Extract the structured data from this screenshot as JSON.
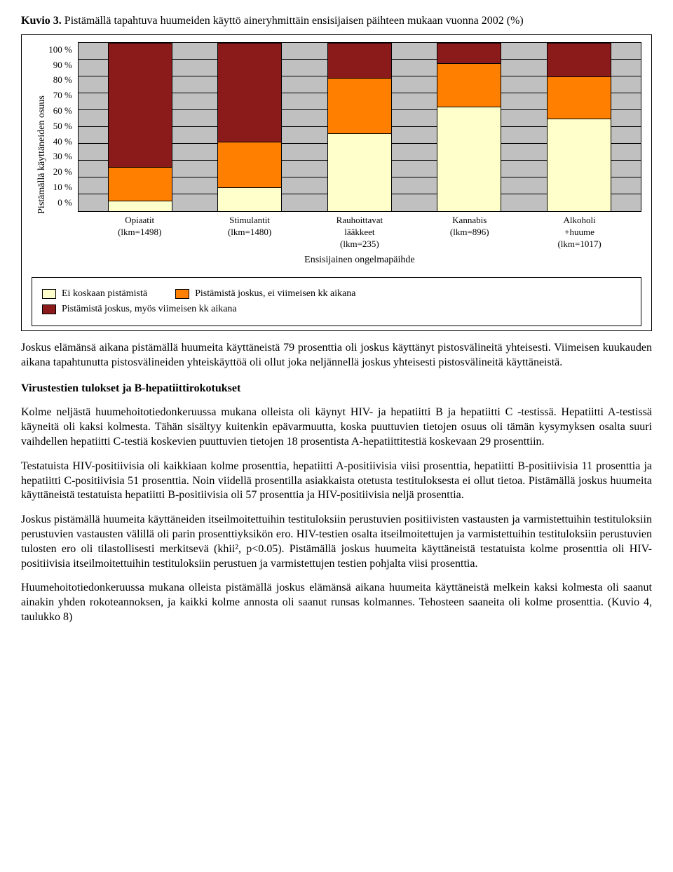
{
  "chart": {
    "type": "stacked-bar",
    "title_prefix": "Kuvio 3. ",
    "title_rest": "Pistämällä tapahtuva huumeiden käyttö aineryhmittäin ensisijaisen päihteen mukaan vuonna 2002 (%)",
    "y_axis_label": "Pistämällä käyttäneiden osuus",
    "y_ticks": [
      "0 %",
      "10 %",
      "20 %",
      "30 %",
      "40 %",
      "50 %",
      "60 %",
      "70 %",
      "80 %",
      "90 %",
      "100 %"
    ],
    "ylim": [
      0,
      100
    ],
    "grid_step": 10,
    "grid_color": "#000000",
    "plot_bg": "#c0c0c0",
    "bar_border": "#000000",
    "x_axis_title": "Ensisijainen ongelmapäihde",
    "categories": [
      {
        "line1": "Opiaatit",
        "line2": "(lkm=1498)"
      },
      {
        "line1": "Stimulantit",
        "line2": "(lkm=1480)"
      },
      {
        "line1": "Rauhoittavat",
        "line2": "lääkkeet",
        "line3": "(lkm=235)"
      },
      {
        "line1": "Kannabis",
        "line2": "(lkm=896)"
      },
      {
        "line1": "Alkoholi",
        "line2": "+huume",
        "line3": "(lkm=1017)"
      }
    ],
    "series_colors": {
      "ei_koskaan": "#ffffcc",
      "joskus_ei_viim": "#ff7f00",
      "joskus_myos_viim": "#8b1a1a"
    },
    "values": [
      {
        "ei_koskaan": 6,
        "joskus_ei_viim": 20,
        "joskus_myos_viim": 74
      },
      {
        "ei_koskaan": 14,
        "joskus_ei_viim": 27,
        "joskus_myos_viim": 59
      },
      {
        "ei_koskaan": 46,
        "joskus_ei_viim": 33,
        "joskus_myos_viim": 21
      },
      {
        "ei_koskaan": 62,
        "joskus_ei_viim": 26,
        "joskus_myos_viim": 12
      },
      {
        "ei_koskaan": 55,
        "joskus_ei_viim": 25,
        "joskus_myos_viim": 20
      }
    ],
    "legend": {
      "ei_koskaan": "Ei koskaan pistämistä",
      "joskus_ei_viim": "Pistämistä joskus, ei viimeisen kk aikana",
      "joskus_myos_viim": "Pistämistä joskus, myös viimeisen kk aikana"
    }
  },
  "paragraphs": {
    "p1": "Joskus elämänsä aikana pistämällä huumeita käyttäneistä 79 prosenttia oli joskus käyttänyt pistosvälineitä yhteisesti. Viimeisen kuukauden aikana tapahtunutta pistosvälineiden yhteiskäyttöä oli ollut joka neljännellä joskus yhteisesti pistosvälineitä käyttäneistä.",
    "h1": "Virustestien tulokset ja B-hepatiittirokotukset",
    "p2": "Kolme neljästä huumehoitotiedonkeruussa mukana olleista oli käynyt HIV- ja hepatiitti B ja hepatiitti C -testissä. Hepatiitti A-testissä käyneitä oli kaksi kolmesta. Tähän sisältyy kuitenkin epävarmuutta, koska puuttuvien tietojen osuus oli tämän kysymyksen osalta suuri vaihdellen hepatiitti C-testiä koskevien puuttuvien tietojen 18 prosentista A-hepatiittitestiä koskevaan 29 prosenttiin.",
    "p3": "Testatuista HIV-positiivisia oli kaikkiaan kolme prosenttia, hepatiitti A-positiivisia viisi prosenttia, hepatiitti B-positiivisia 11 prosenttia ja hepatiitti C-positiivisia 51 prosenttia. Noin viidellä prosentilla asiakkaista otetusta testituloksesta ei ollut tietoa. Pistämällä joskus huumeita käyttäneistä testatuista hepatiitti B-positiivisia oli 57 prosenttia ja HIV-positiivisia neljä prosenttia.",
    "p4": "Joskus pistämällä huumeita käyttäneiden itseilmoitettuihin testituloksiin perustuvien positiivisten vastausten ja varmistettuihin testituloksiin perustuvien vastausten välillä oli parin prosenttiyksikön ero. HIV-testien osalta itseilmoitettujen ja varmistettuihin testituloksiin perustuvien tulosten ero oli tilastollisesti merkitsevä (khii², p<0.05). Pistämällä joskus huumeita käyttäneistä testatuista kolme prosenttia oli HIV-positiivisia itseilmoitettuihin testituloksiin perustuen ja varmistettujen testien pohjalta viisi prosenttia.",
    "p5": "Huumehoitotiedonkeruussa mukana olleista pistämällä joskus elämänsä aikana huumeita käyttäneistä melkein kaksi kolmesta oli saanut ainakin yhden rokoteannoksen, ja kaikki kolme annosta oli saanut runsas kolmannes. Tehosteen saaneita oli kolme prosenttia. (Kuvio 4, taulukko 8)"
  }
}
